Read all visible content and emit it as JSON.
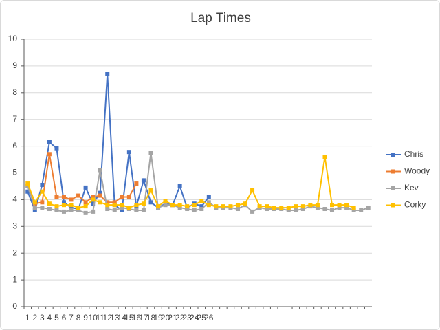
{
  "chart_data": {
    "type": "line",
    "title": "Lap Times",
    "categories": [
      "1",
      "2",
      "3",
      "4",
      "5",
      "6",
      "7",
      "8",
      "9",
      "10",
      "11",
      "12",
      "13",
      "14",
      "15",
      "16",
      "17",
      "18",
      "19",
      "20",
      "21",
      "22",
      "23",
      "24",
      "25",
      "26",
      null,
      null,
      null,
      null,
      null,
      null,
      null,
      null,
      null,
      null,
      null,
      null,
      null,
      null,
      null,
      null,
      null,
      null,
      null,
      null,
      null,
      null
    ],
    "series": [
      {
        "name": "Chris",
        "color": "#4472c4",
        "values": [
          4.3,
          3.6,
          4.55,
          6.15,
          5.92,
          3.9,
          3.7,
          3.65,
          4.45,
          3.85,
          4.25,
          8.7,
          3.8,
          3.6,
          5.78,
          3.75,
          4.72,
          3.9,
          3.7,
          3.85,
          3.8,
          4.5,
          3.7,
          3.85,
          3.75,
          4.1,
          null,
          null,
          null,
          null,
          null,
          null,
          null,
          null,
          null,
          null,
          null,
          null,
          null,
          null,
          null,
          null,
          null,
          null,
          null,
          null,
          null,
          null
        ]
      },
      {
        "name": "Woody",
        "color": "#ed7d31",
        "values": [
          4.5,
          3.85,
          3.9,
          5.7,
          4.1,
          4.1,
          4.0,
          4.15,
          3.9,
          4.1,
          4.15,
          3.9,
          3.9,
          4.1,
          4.1,
          4.6,
          null,
          null,
          null,
          null,
          null,
          null,
          null,
          null,
          null,
          null,
          null,
          null,
          null,
          null,
          null,
          null,
          null,
          null,
          null,
          null,
          null,
          null,
          null,
          null,
          null,
          null,
          null,
          null,
          null,
          null,
          null,
          null
        ]
      },
      {
        "name": "Kev",
        "color": "#a5a5a5",
        "values": [
          4.5,
          3.7,
          3.7,
          3.65,
          3.6,
          3.55,
          3.6,
          3.6,
          3.5,
          3.55,
          5.1,
          3.65,
          3.6,
          3.7,
          3.65,
          3.6,
          3.6,
          5.75,
          3.7,
          3.8,
          3.8,
          3.7,
          3.65,
          3.6,
          3.65,
          3.9,
          3.7,
          3.7,
          3.7,
          3.65,
          3.8,
          3.55,
          3.7,
          3.65,
          3.65,
          3.65,
          3.6,
          3.6,
          3.65,
          3.75,
          3.7,
          3.65,
          3.6,
          3.7,
          3.7,
          3.6,
          3.6,
          3.7
        ]
      },
      {
        "name": "Corky",
        "color": "#ffc000",
        "values": [
          4.6,
          3.9,
          4.3,
          3.85,
          3.75,
          3.8,
          3.8,
          3.7,
          3.75,
          4.0,
          3.9,
          3.8,
          3.8,
          3.8,
          3.7,
          3.8,
          3.85,
          4.35,
          3.75,
          3.95,
          3.8,
          3.8,
          3.75,
          3.8,
          3.95,
          3.8,
          3.75,
          3.75,
          3.75,
          3.8,
          3.85,
          4.35,
          3.75,
          3.75,
          3.7,
          3.7,
          3.7,
          3.75,
          3.75,
          3.8,
          3.8,
          5.6,
          3.8,
          3.8,
          3.8,
          3.7,
          null,
          null
        ]
      }
    ],
    "ylim": [
      0,
      10
    ],
    "yticks": [
      0,
      1,
      2,
      3,
      4,
      5,
      6,
      7,
      8,
      9,
      10
    ],
    "grid": true,
    "legend": "right"
  }
}
